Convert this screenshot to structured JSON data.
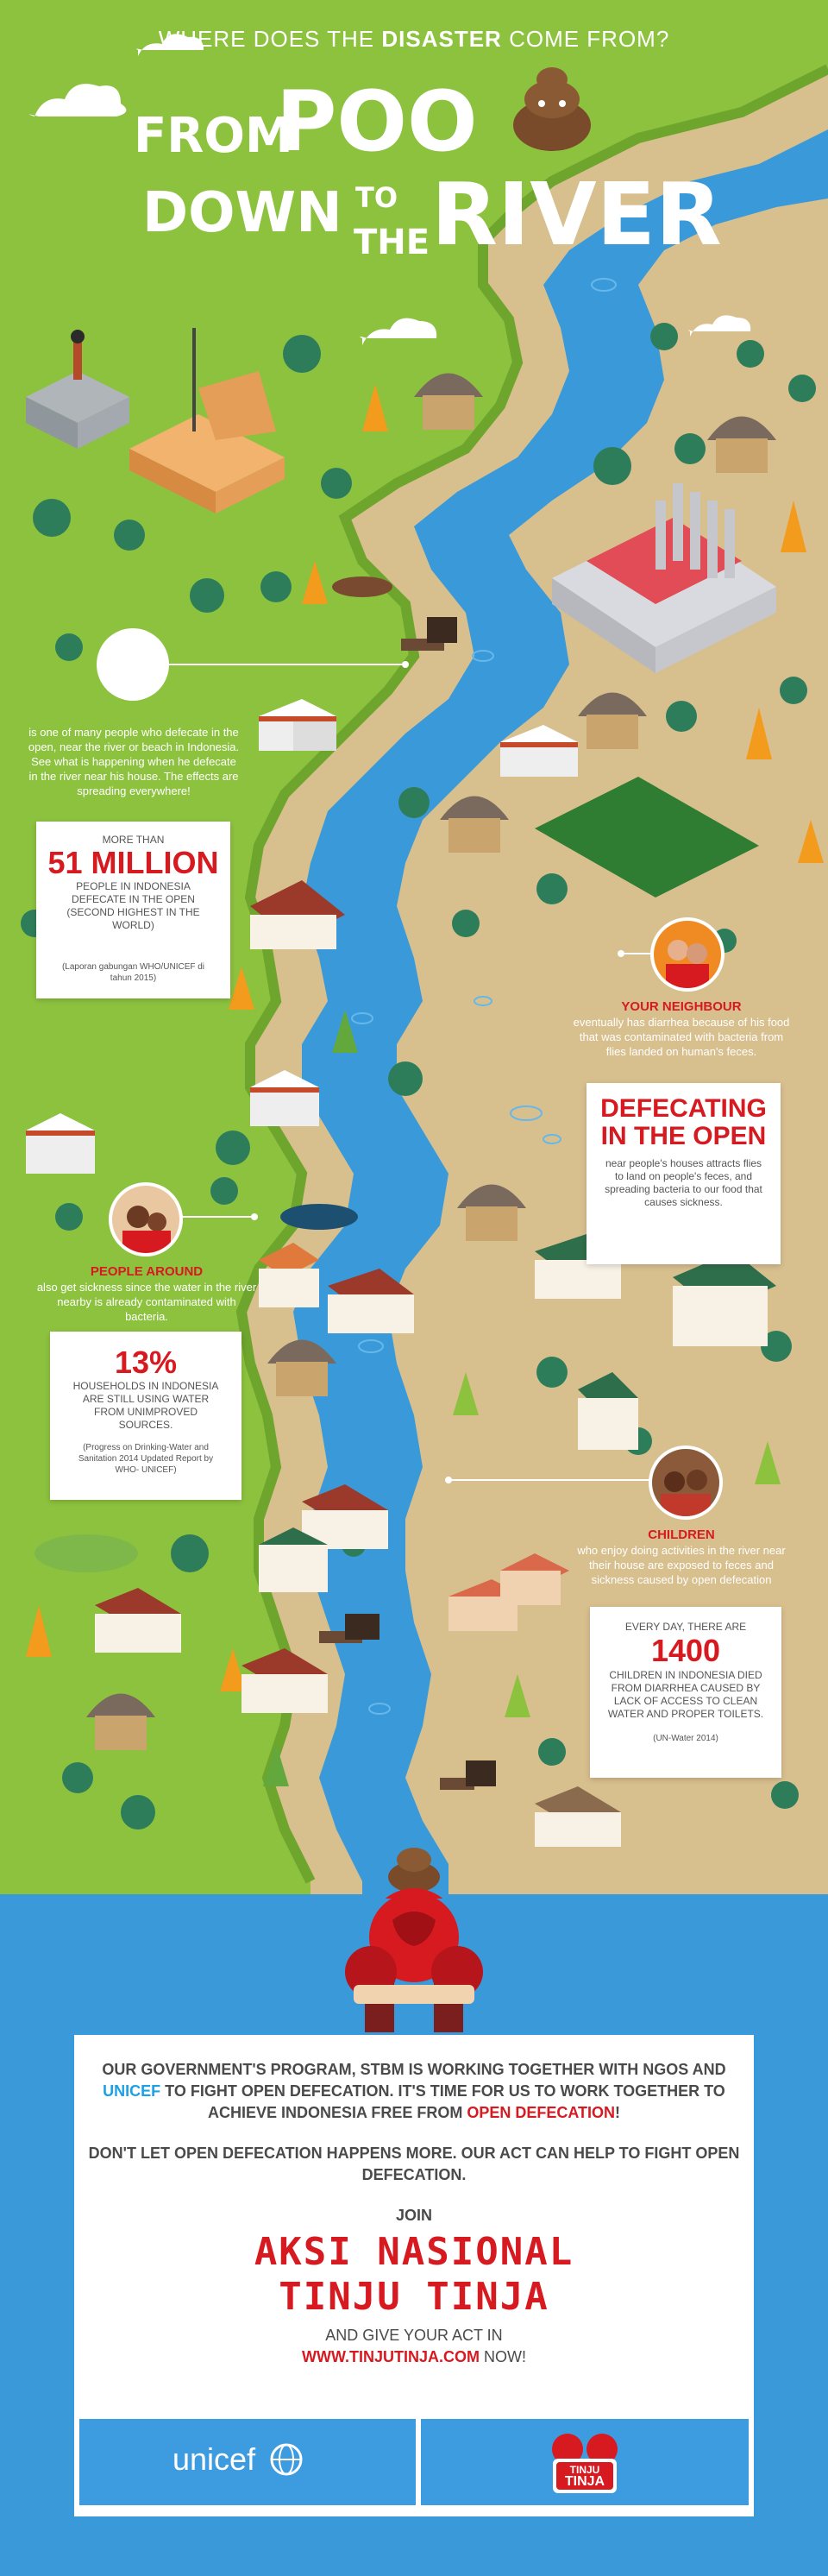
{
  "header": {
    "pre": "WHERE DOES THE ",
    "bold": "DISASTER",
    "post": " COME FROM?"
  },
  "title": {
    "from": "FROM",
    "poo": "POO",
    "down": "DOWN",
    "to": "TO",
    "the": "THE",
    "river": "RIVER"
  },
  "intro": {
    "text": "is one of many people who defecate in the open, near the river or beach in Indonesia. See what is happening when he defecate in the river near his house. The effects are spreading everywhere!"
  },
  "stat1": {
    "pre": "MORE THAN",
    "value": "51 MILLION",
    "desc": "PEOPLE IN INDONESIA DEFECATE IN THE OPEN (SECOND HIGHEST IN THE WORLD)",
    "source": "(Laporan gabungan WHO/UNICEF di tahun 2015)"
  },
  "neighbour": {
    "label": "YOUR NEIGHBOUR",
    "text": "eventually has diarrhea because of his food that was contaminated with bacteria from flies landed on human's feces."
  },
  "defecating": {
    "title": "DEFECATING IN THE OPEN",
    "text": "near people's houses attracts flies to land on people's feces, and spreading bacteria to our food that causes sickness."
  },
  "people_around": {
    "label": "PEOPLE AROUND",
    "text": "also get sickness since the water in the river nearby is already contaminated with bacteria."
  },
  "stat2": {
    "value": "13%",
    "desc": "HOUSEHOLDS IN INDONESIA ARE STILL USING WATER FROM UNIMPROVED SOURCES.",
    "source": "(Progress on Drinking-Water and Sanitation 2014 Updated Report by WHO- UNICEF)"
  },
  "children": {
    "label": "CHILDREN",
    "text": "who enjoy doing activities in the river near their house are exposed to feces and sickness caused by open defecation"
  },
  "stat3": {
    "pre": "EVERY DAY, THERE ARE",
    "value": "1400",
    "desc": "CHILDREN IN INDONESIA DIED FROM DIARRHEA CAUSED BY LACK OF ACCESS TO CLEAN WATER AND PROPER TOILETS.",
    "source": "(UN-Water 2014)"
  },
  "cta": {
    "p1a": "OUR GOVERNMENT'S PROGRAM, STBM IS WORKING TOGETHER WITH NGOS AND ",
    "p1b": "UNICEF",
    "p1c": " TO FIGHT OPEN DEFECATION. IT'S TIME FOR US TO WORK TOGETHER TO ",
    "p1d": "ACHIEVE INDONESIA FREE FROM ",
    "p1e": "OPEN DEFECATION",
    "p1f": "!",
    "p2": "DON'T LET OPEN DEFECATION HAPPENS MORE. OUR ACT CAN HELP TO FIGHT OPEN DEFECATION.",
    "join": "JOIN",
    "campaign_line1": "AKSI NASIONAL",
    "campaign_line2": "TINJU TINJA",
    "give": "AND GIVE YOUR ACT IN",
    "url": "WWW.TINJUTINJA.COM",
    "url_after": " NOW!"
  },
  "logos": {
    "unicef": "unicef",
    "tinju": "TINJU",
    "tinja": "TINJA"
  },
  "colors": {
    "grass": "#8dc23f",
    "river": "#3a9ad9",
    "sand": "#d8bf8e",
    "accent_red": "#d71920",
    "unicef_blue": "#3d9be0"
  }
}
